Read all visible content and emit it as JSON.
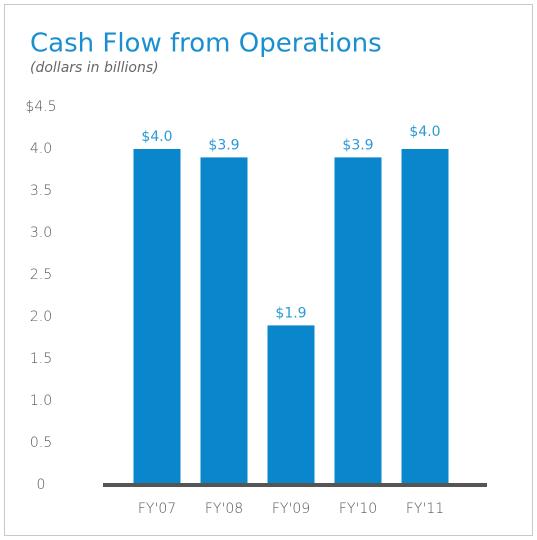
{
  "chart_data": {
    "type": "bar",
    "title": "Cash Flow from Operations",
    "subtitle": "(dollars in billions)",
    "categories": [
      "FY'07",
      "FY'08",
      "FY'09",
      "FY'10",
      "FY'11"
    ],
    "values": [
      4.0,
      3.9,
      1.9,
      3.9,
      4.0
    ],
    "value_labels": [
      "$4.0",
      "$3.9",
      "$1.9",
      "$3.9",
      "$4.0"
    ],
    "color": "#0a87cc",
    "ylim": [
      0,
      4.5
    ],
    "yticks": [
      0,
      {
        "value": 0.5,
        "label": "0.5"
      },
      {
        "value": 1,
        "label": "1.0"
      },
      {
        "value": 1.5,
        "label": "1.5"
      },
      {
        "value": 2,
        "label": "2.0"
      },
      {
        "value": 2.5,
        "label": "2.5"
      },
      {
        "value": 3,
        "label": "3.0"
      },
      {
        "value": 3.5,
        "label": "3.5"
      },
      {
        "value": 4,
        "label": "4.0"
      },
      {
        "value": 4.5,
        "label": "$4.5"
      }
    ],
    "grid": false
  }
}
